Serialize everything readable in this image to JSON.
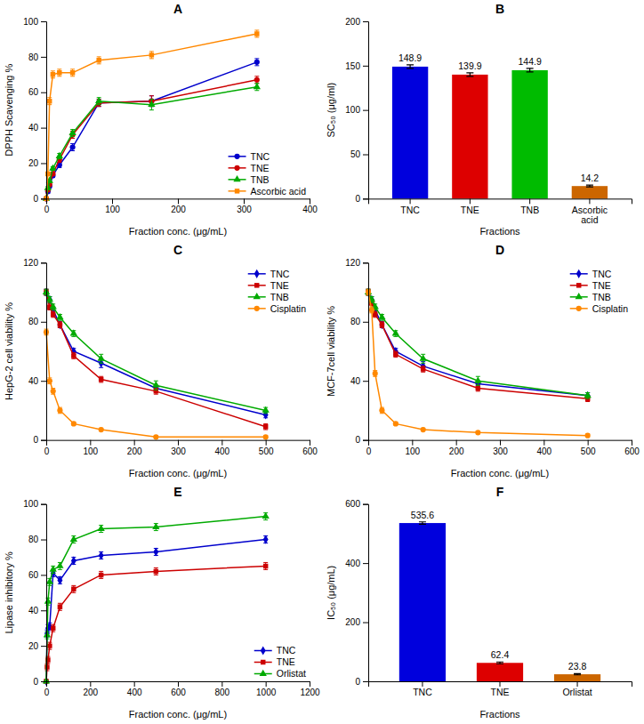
{
  "chart_data": [
    {
      "type": "line",
      "title": "A",
      "xlabel": "Fraction conc. (μg/mL)",
      "ylabel": "DPPH Scavenging %",
      "xlim": [
        0,
        400
      ],
      "ylim": [
        0,
        100
      ],
      "xticks": [
        0,
        100,
        200,
        300,
        400
      ],
      "yticks": [
        0,
        20,
        40,
        60,
        80,
        100
      ],
      "grid": false,
      "legend": "lower right",
      "x": [
        0,
        2.5,
        5,
        10,
        20,
        40,
        80,
        160,
        320
      ],
      "series": [
        {
          "name": "TNC",
          "color": "#0000cc",
          "marker": "circle",
          "line_style": "solid",
          "values": [
            0,
            4,
            7,
            13,
            19,
            29,
            54,
            55,
            77
          ],
          "errors": [
            0,
            1,
            1,
            1,
            1.5,
            2,
            2,
            3,
            2
          ]
        },
        {
          "name": "TNE",
          "color": "#cc0000",
          "marker": "circle",
          "line_style": "solid",
          "values": [
            0,
            5,
            8,
            14,
            22,
            36,
            54,
            55,
            67
          ],
          "errors": [
            0,
            1,
            1,
            1,
            1.5,
            2,
            2,
            3,
            2
          ]
        },
        {
          "name": "TNB",
          "color": "#00aa00",
          "marker": "triangle",
          "line_style": "solid",
          "values": [
            0,
            6,
            10,
            17,
            24,
            37,
            55,
            53,
            63
          ],
          "errors": [
            0,
            1,
            1,
            1,
            1.5,
            2,
            2,
            3,
            2
          ]
        },
        {
          "name": "Ascorbic acid",
          "color": "#ff8800",
          "marker": "square",
          "line_style": "solid",
          "values": [
            0,
            14,
            55,
            70,
            71,
            71,
            78,
            81,
            93
          ],
          "errors": [
            0,
            1,
            2,
            2,
            2,
            2,
            2,
            2,
            2
          ]
        }
      ]
    },
    {
      "type": "bar",
      "title": "B",
      "xlabel": "Fractions",
      "ylabel": "SC₅₀ (μg/ml)",
      "categories": [
        "TNC",
        "TNE",
        "TNB",
        "Ascorbic\nacid"
      ],
      "values": [
        148.9,
        139.9,
        144.9,
        14.2
      ],
      "errors": [
        2,
        2,
        2,
        1
      ],
      "colors": [
        "#0000dd",
        "#dd0000",
        "#00bb00",
        "#cc6600"
      ],
      "ylim": [
        0,
        200
      ],
      "yticks": [
        0,
        50,
        100,
        150,
        200
      ],
      "grid": false,
      "data_labels": true
    },
    {
      "type": "line",
      "title": "C",
      "xlabel": "Fraction conc. (μg/mL)",
      "ylabel": "HepG-2 cell viability %",
      "xlim": [
        0,
        600
      ],
      "ylim": [
        0,
        120
      ],
      "xticks": [
        0,
        100,
        200,
        300,
        400,
        500,
        600
      ],
      "yticks": [
        0,
        40,
        80,
        120
      ],
      "grid": false,
      "legend": "upper right",
      "x": [
        0,
        7.8,
        15.6,
        31.25,
        62.5,
        125,
        250,
        500
      ],
      "series": [
        {
          "name": "TNC",
          "color": "#0000cc",
          "marker": "diamond",
          "line_style": "solid",
          "values": [
            100,
            95,
            88,
            78,
            60,
            52,
            35,
            17
          ],
          "errors": [
            2,
            2,
            2,
            2,
            2,
            3,
            2,
            2
          ]
        },
        {
          "name": "TNE",
          "color": "#cc0000",
          "marker": "square",
          "line_style": "solid",
          "values": [
            100,
            90,
            85,
            78,
            57,
            41,
            33,
            9
          ],
          "errors": [
            2,
            2,
            2,
            2,
            2,
            2,
            2,
            2
          ]
        },
        {
          "name": "TNB",
          "color": "#00aa00",
          "marker": "triangle",
          "line_style": "solid",
          "values": [
            100,
            95,
            90,
            83,
            72,
            55,
            37,
            20
          ],
          "errors": [
            2,
            2,
            2,
            2,
            2,
            3,
            3,
            2
          ]
        },
        {
          "name": "Cisplatin",
          "color": "#ff8800",
          "marker": "circle",
          "line_style": "solid",
          "values": [
            73,
            40,
            33,
            20,
            11,
            7,
            2,
            2
          ],
          "errors": [
            2,
            2,
            2,
            2,
            1,
            1,
            1,
            1
          ]
        }
      ]
    },
    {
      "type": "line",
      "title": "D",
      "xlabel": "Fraction conc. (μg/mL)",
      "ylabel": "MCF-7cell viability %",
      "xlim": [
        0,
        600
      ],
      "ylim": [
        0,
        120
      ],
      "xticks": [
        0,
        100,
        200,
        300,
        400,
        500,
        600
      ],
      "yticks": [
        0,
        40,
        80,
        120
      ],
      "grid": false,
      "legend": "upper right",
      "x": [
        0,
        7.8,
        15.6,
        31.25,
        62.5,
        125,
        250,
        500
      ],
      "series": [
        {
          "name": "TNC",
          "color": "#0000cc",
          "marker": "diamond",
          "line_style": "solid",
          "values": [
            100,
            95,
            88,
            78,
            60,
            50,
            38,
            30
          ],
          "errors": [
            2,
            2,
            2,
            2,
            2,
            3,
            2,
            2
          ]
        },
        {
          "name": "TNE",
          "color": "#cc0000",
          "marker": "square",
          "line_style": "solid",
          "values": [
            100,
            93,
            85,
            78,
            58,
            48,
            35,
            28
          ],
          "errors": [
            2,
            2,
            2,
            2,
            2,
            2,
            2,
            2
          ]
        },
        {
          "name": "TNB",
          "color": "#00aa00",
          "marker": "triangle",
          "line_style": "solid",
          "values": [
            100,
            95,
            90,
            83,
            72,
            55,
            40,
            30
          ],
          "errors": [
            2,
            2,
            2,
            2,
            2,
            3,
            3,
            2
          ]
        },
        {
          "name": "Cisplatin",
          "color": "#ff8800",
          "marker": "circle",
          "line_style": "solid",
          "values": [
            100,
            88,
            45,
            20,
            11,
            7,
            5,
            3
          ],
          "errors": [
            2,
            2,
            2,
            2,
            1,
            1,
            1,
            1
          ]
        }
      ]
    },
    {
      "type": "line",
      "title": "E",
      "xlabel": "Fraction conc. (μg/mL)",
      "ylabel": "Lipase inhibitory %",
      "xlim": [
        0,
        1200
      ],
      "ylim": [
        0,
        100
      ],
      "xticks": [
        0,
        200,
        400,
        600,
        800,
        1000,
        1200
      ],
      "yticks": [
        0,
        20,
        40,
        60,
        80,
        100
      ],
      "grid": false,
      "legend": "lower right",
      "x": [
        0,
        3.9,
        7.8,
        15.6,
        31.25,
        62.5,
        125,
        250,
        500,
        1000
      ],
      "series": [
        {
          "name": "TNC",
          "color": "#0000cc",
          "marker": "diamond",
          "line_style": "solid",
          "values": [
            0,
            27,
            30,
            31,
            61,
            57,
            68,
            71,
            73,
            80
          ],
          "errors": [
            0,
            2,
            2,
            2,
            2,
            2,
            2,
            2,
            2,
            2
          ]
        },
        {
          "name": "TNE",
          "color": "#cc0000",
          "marker": "square",
          "line_style": "solid",
          "values": [
            0,
            8,
            12,
            20,
            30,
            42,
            52,
            60,
            62,
            65
          ],
          "errors": [
            0,
            2,
            2,
            2,
            2,
            2,
            2,
            2,
            2,
            2
          ]
        },
        {
          "name": "Orlistat",
          "color": "#00aa00",
          "marker": "triangle",
          "line_style": "solid",
          "values": [
            0,
            26,
            45,
            56,
            63,
            65,
            80,
            86,
            87,
            93
          ],
          "errors": [
            0,
            2,
            2,
            2,
            2,
            2,
            2,
            2,
            2,
            2
          ]
        }
      ]
    },
    {
      "type": "bar",
      "title": "F",
      "xlabel": "Fractions",
      "ylabel": "IC₅₀ (μg/mL)",
      "categories": [
        "TNC",
        "TNE",
        "Orlistat"
      ],
      "values": [
        535.6,
        62.4,
        23.8
      ],
      "errors": [
        4,
        3,
        2
      ],
      "colors": [
        "#0000dd",
        "#dd0000",
        "#cc6600"
      ],
      "ylim": [
        0,
        600
      ],
      "yticks": [
        0,
        200,
        400,
        600
      ],
      "grid": false,
      "data_labels": true
    }
  ]
}
